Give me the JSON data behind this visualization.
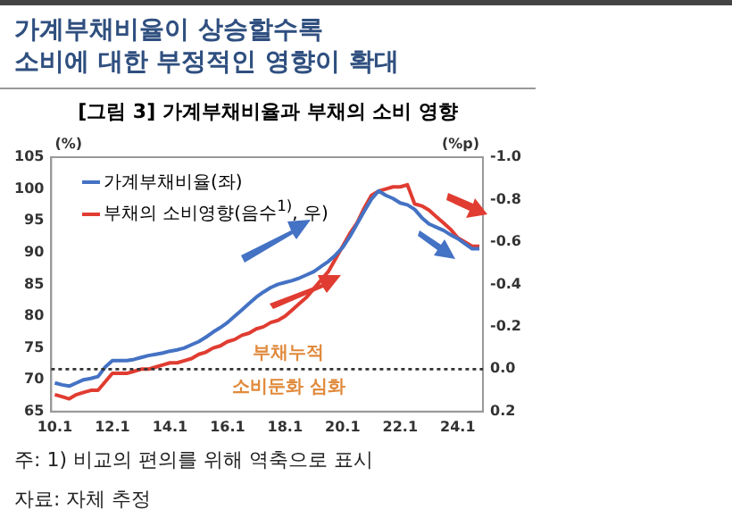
{
  "chart_data": {
    "type": "line",
    "title": "가계부채비율이 상승할수록\n소비에 대한 부정적인 영향이 확대",
    "subtitle": "[그림 3] 가계부채비율과 부채의 소비 영향",
    "ylabel": "(%)",
    "y2label": "(%p)",
    "categories": [
      "10.1",
      null,
      null,
      null,
      null,
      null,
      null,
      null,
      "12.1",
      null,
      null,
      null,
      null,
      null,
      null,
      null,
      "14.1",
      null,
      null,
      null,
      null,
      null,
      null,
      null,
      "16.1",
      null,
      null,
      null,
      null,
      null,
      null,
      null,
      "18.1",
      null,
      null,
      null,
      null,
      null,
      null,
      null,
      "20.1",
      null,
      null,
      null,
      null,
      null,
      null,
      null,
      "22.1",
      null,
      null,
      null,
      null,
      null,
      null,
      null,
      "24.1",
      null,
      null,
      null
    ],
    "series": [
      {
        "name": "가계부채비율(좌)",
        "color": "#4472c4",
        "values": [
          69.5,
          69.2,
          69,
          69.5,
          70,
          70.2,
          70.5,
          72,
          73,
          73,
          73,
          73.2,
          73.5,
          73.8,
          74,
          74.2,
          74.5,
          74.7,
          75,
          75.5,
          76,
          76.7,
          77.5,
          78.2,
          79,
          80,
          81,
          82,
          83,
          83.8,
          84.5,
          85,
          85.3,
          85.6,
          86,
          86.5,
          87,
          87.8,
          88.6,
          89.6,
          90.8,
          92.5,
          94.5,
          96.5,
          98.4,
          99.7,
          99,
          98.5,
          97.8,
          97.5,
          96.8,
          95.5,
          94.5,
          94,
          93.5,
          92.8,
          92.2,
          91.4,
          90.6,
          90.6
        ]
      },
      {
        "name": "부채의 소비영향(음수$^{1)}$, 우)",
        "color": "#e03c31",
        "axis": "y2",
        "values": [
          0.12,
          0.13,
          0.14,
          0.12,
          0.11,
          0.1,
          0.1,
          0.06,
          0.02,
          0.02,
          0.02,
          0.01,
          0,
          0,
          -0.01,
          -0.02,
          -0.03,
          -0.03,
          -0.04,
          -0.05,
          -0.07,
          -0.08,
          -0.1,
          -0.11,
          -0.13,
          -0.14,
          -0.16,
          -0.17,
          -0.19,
          -0.2,
          -0.22,
          -0.23,
          -0.25,
          -0.28,
          -0.31,
          -0.34,
          -0.38,
          -0.42,
          -0.46,
          -0.52,
          -0.58,
          -0.64,
          -0.69,
          -0.76,
          -0.82,
          -0.84,
          -0.85,
          -0.86,
          -0.86,
          -0.87,
          -0.78,
          -0.77,
          -0.75,
          -0.72,
          -0.69,
          -0.66,
          -0.62,
          -0.6,
          -0.58,
          -0.58
        ]
      }
    ],
    "ylim": [
      65,
      105
    ],
    "yticks": [
      65,
      70,
      75,
      80,
      85,
      90,
      95,
      100,
      105
    ],
    "y2lim": [
      0.2,
      -1.0
    ],
    "y2ticks": [
      {
        "value": 0.2,
        "label": "0.2"
      },
      {
        "value": 0,
        "label": "0.0"
      },
      {
        "value": -0.2,
        "label": "-0.2"
      },
      {
        "value": -0.4,
        "label": "-0.4"
      },
      {
        "value": -0.6,
        "label": "-0.6"
      },
      {
        "value": -0.8,
        "label": "-0.8"
      },
      {
        "value": -1,
        "label": "-1.0"
      }
    ],
    "ref_lines": [
      {
        "axis": "y2",
        "value": 0,
        "color": "#333333",
        "line_style": "dotted"
      }
    ],
    "annotations": [
      "부채누적",
      "소비둔화 심화",
      "주: 1) 비교의 편의를 위해 역축으로 표시",
      "자료: 자체 추정"
    ],
    "legend": "top left",
    "grid": false,
    "marker": "none",
    "line_style": "solid"
  }
}
